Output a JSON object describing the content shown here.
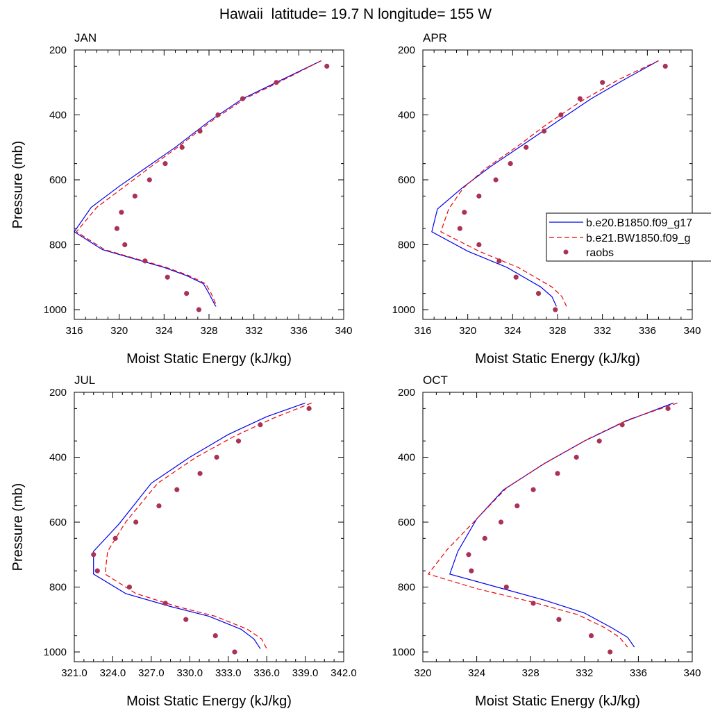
{
  "figure_title": "Hawaii  latitude= 19.7 N longitude= 155 W",
  "colors": {
    "model1": "#0000ee",
    "model2": "#ee0000",
    "obs": "#aa3355"
  },
  "legend": {
    "placement": "right of APR panel, overlapping",
    "entries": [
      {
        "label": "b.e20.B1850.f09_g17",
        "style": "solid-line",
        "color": "#0000ee"
      },
      {
        "label": "b.e21.BW1850.f09_g",
        "style": "dashed-line",
        "color": "#ee0000"
      },
      {
        "label": "raobs",
        "style": "dot",
        "color": "#aa3355"
      }
    ]
  },
  "chart_data": [
    {
      "type": "line",
      "title": "JAN",
      "xlabel": "Moist Static Energy (kJ/kg)",
      "ylabel": "Pressure (mb)",
      "xlim": [
        316,
        340
      ],
      "ylim": [
        200,
        1030
      ],
      "y_inverted": true,
      "xticks": [
        "316",
        "320",
        "324",
        "328",
        "332",
        "336",
        "340"
      ],
      "xtick_values": [
        316,
        320,
        324,
        328,
        332,
        336,
        340
      ],
      "yticks": [
        "200",
        "400",
        "600",
        "800",
        "1000"
      ],
      "ytick_values": [
        200,
        400,
        600,
        800,
        1000
      ],
      "series": [
        {
          "name": "b.e20.B1850.f09_g17",
          "style": "solid",
          "x": [
            338.0,
            334.0,
            331.0,
            328.0,
            325.0,
            322.5,
            320.0,
            317.5,
            316.0,
            318.5,
            319.5,
            324.0,
            326.0,
            327.5,
            328.0,
            328.6
          ],
          "y": [
            233,
            300,
            350,
            420,
            500,
            560,
            620,
            685,
            760,
            815,
            825,
            870,
            895,
            920,
            950,
            990
          ]
        },
        {
          "name": "b.e21.BW1850.f09_g",
          "style": "dashed",
          "x": [
            338.0,
            334.2,
            331.2,
            328.2,
            325.2,
            322.8,
            320.5,
            318.0,
            316.2,
            318.7,
            319.7,
            324.2,
            326.2,
            327.7,
            328.2,
            328.7
          ],
          "y": [
            233,
            300,
            350,
            420,
            500,
            560,
            620,
            685,
            760,
            815,
            825,
            870,
            895,
            920,
            950,
            990
          ]
        },
        {
          "name": "raobs",
          "style": "dots",
          "x": [
            338.5,
            334.0,
            331.0,
            328.8,
            327.2,
            325.6,
            324.1,
            322.7,
            321.4,
            320.2,
            319.8,
            320.5,
            322.3,
            324.3,
            326.0,
            327.1
          ],
          "y": [
            250,
            300,
            350,
            400,
            450,
            500,
            550,
            600,
            650,
            700,
            750,
            800,
            850,
            900,
            950,
            1000
          ]
        }
      ]
    },
    {
      "type": "line",
      "title": "APR",
      "xlabel": "Moist Static Energy (kJ/kg)",
      "ylabel": "",
      "xlim": [
        316,
        340
      ],
      "ylim": [
        200,
        1030
      ],
      "y_inverted": true,
      "xticks": [
        "316",
        "320",
        "324",
        "328",
        "332",
        "336",
        "340"
      ],
      "xtick_values": [
        316,
        320,
        324,
        328,
        332,
        336,
        340
      ],
      "yticks": [
        "200",
        "400",
        "600",
        "800",
        "1000"
      ],
      "ytick_values": [
        200,
        400,
        600,
        800,
        1000
      ],
      "series": [
        {
          "name": "b.e20.B1850.f09_g17",
          "style": "solid",
          "x": [
            337.0,
            334.0,
            331.0,
            328.0,
            325.0,
            322.0,
            319.5,
            317.3,
            316.8,
            320.0,
            323.5,
            326.5,
            327.5,
            327.9
          ],
          "y": [
            233,
            290,
            350,
            420,
            490,
            560,
            625,
            690,
            760,
            820,
            870,
            930,
            960,
            990
          ]
        },
        {
          "name": "b.e21.BW1850.f09_g",
          "style": "dashed",
          "x": [
            337.0,
            333.5,
            330.0,
            327.0,
            324.3,
            321.6,
            319.6,
            318.3,
            317.6,
            321.0,
            324.5,
            327.5,
            328.4,
            328.8
          ],
          "y": [
            233,
            290,
            360,
            430,
            500,
            565,
            625,
            690,
            760,
            820,
            870,
            930,
            960,
            990
          ]
        },
        {
          "name": "raobs",
          "style": "dots",
          "x": [
            337.6,
            332.0,
            330.0,
            328.3,
            326.8,
            325.2,
            323.8,
            322.5,
            321.0,
            319.7,
            319.3,
            321.0,
            322.8,
            324.3,
            326.3,
            327.8
          ],
          "y": [
            250,
            300,
            350,
            400,
            450,
            500,
            550,
            600,
            650,
            700,
            750,
            800,
            850,
            900,
            950,
            1000
          ]
        }
      ]
    },
    {
      "type": "line",
      "title": "JUL",
      "xlabel": "Moist Static Energy (kJ/kg)",
      "ylabel": "Pressure (mb)",
      "xlim": [
        321,
        342
      ],
      "ylim": [
        200,
        1030
      ],
      "y_inverted": true,
      "xticks": [
        "321.0",
        "324.0",
        "327.0",
        "330.0",
        "333.0",
        "336.0",
        "339.0",
        "342.0"
      ],
      "xtick_values": [
        321,
        324,
        327,
        330,
        333,
        336,
        339,
        342
      ],
      "yticks": [
        "200",
        "400",
        "600",
        "800",
        "1000"
      ],
      "ytick_values": [
        200,
        400,
        600,
        800,
        1000
      ],
      "series": [
        {
          "name": "b.e20.B1850.f09_g17",
          "style": "solid",
          "x": [
            339.0,
            336.0,
            333.0,
            330.0,
            327.0,
            324.5,
            322.5,
            322.5,
            325.0,
            328.5,
            331.5,
            334.0,
            335.0,
            335.5
          ],
          "y": [
            233,
            275,
            330,
            400,
            480,
            605,
            690,
            760,
            820,
            860,
            890,
            930,
            960,
            990
          ]
        },
        {
          "name": "b.e21.BW1850.f09_g",
          "style": "dashed",
          "x": [
            339.5,
            336.5,
            333.5,
            330.5,
            327.5,
            325.0,
            323.6,
            323.4,
            325.8,
            329.0,
            332.0,
            334.5,
            335.6,
            336.0
          ],
          "y": [
            233,
            280,
            335,
            400,
            480,
            600,
            690,
            760,
            820,
            860,
            890,
            930,
            960,
            990
          ]
        },
        {
          "name": "raobs",
          "style": "dots",
          "x": [
            339.3,
            335.5,
            333.8,
            332.1,
            330.8,
            329.0,
            327.6,
            325.8,
            324.2,
            322.5,
            322.8,
            325.3,
            328.1,
            329.7,
            332.0,
            333.5
          ],
          "y": [
            250,
            300,
            350,
            400,
            450,
            500,
            550,
            600,
            650,
            700,
            750,
            800,
            850,
            900,
            950,
            1000
          ]
        }
      ]
    },
    {
      "type": "line",
      "title": "OCT",
      "xlabel": "Moist Static Energy (kJ/kg)",
      "ylabel": "",
      "xlim": [
        320,
        340
      ],
      "ylim": [
        200,
        1030
      ],
      "y_inverted": true,
      "xticks": [
        "320",
        "324",
        "328",
        "332",
        "336",
        "340"
      ],
      "xtick_values": [
        320,
        324,
        328,
        332,
        336,
        340
      ],
      "yticks": [
        "200",
        "400",
        "600",
        "800",
        "1000"
      ],
      "ytick_values": [
        200,
        400,
        600,
        800,
        1000
      ],
      "series": [
        {
          "name": "b.e20.B1850.f09_g17",
          "style": "solid",
          "x": [
            338.6,
            335.0,
            332.0,
            329.0,
            326.0,
            324.0,
            322.6,
            322.0,
            325.5,
            329.0,
            332.0,
            334.0,
            335.2,
            335.7
          ],
          "y": [
            233,
            290,
            350,
            420,
            500,
            590,
            690,
            760,
            800,
            840,
            880,
            925,
            955,
            985
          ]
        },
        {
          "name": "b.e21.BW1850.f09_g",
          "style": "dashed",
          "x": [
            338.9,
            335.2,
            332.2,
            329.2,
            326.2,
            324.0,
            321.8,
            320.4,
            324.0,
            328.0,
            331.5,
            333.5,
            334.6,
            335.2
          ],
          "y": [
            233,
            285,
            345,
            415,
            495,
            590,
            685,
            760,
            805,
            845,
            885,
            925,
            955,
            985
          ]
        },
        {
          "name": "raobs",
          "style": "dots",
          "x": [
            338.2,
            334.8,
            333.1,
            331.4,
            330.0,
            328.2,
            327.0,
            325.8,
            324.6,
            323.4,
            323.6,
            326.2,
            328.2,
            330.1,
            332.5,
            333.9
          ],
          "y": [
            250,
            300,
            350,
            400,
            450,
            500,
            550,
            600,
            650,
            700,
            750,
            800,
            850,
            900,
            950,
            1000
          ]
        }
      ]
    }
  ]
}
